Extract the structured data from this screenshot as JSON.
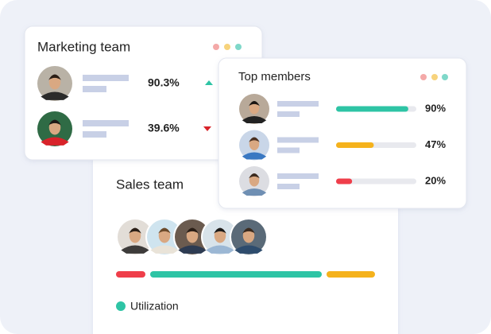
{
  "marketing_team": {
    "title": "Marketing team",
    "rows": [
      "90.3%",
      "39.6%"
    ]
  },
  "top_members": {
    "title": "Top members",
    "values": [
      90,
      47,
      20
    ],
    "value_labels": [
      "90%",
      "47%",
      "20%"
    ],
    "colors": [
      "#2ec4a5",
      "#f5b21c",
      "#ef3e4a"
    ]
  },
  "sales_team": {
    "title": "Sales team",
    "legend": "Utilization"
  }
}
